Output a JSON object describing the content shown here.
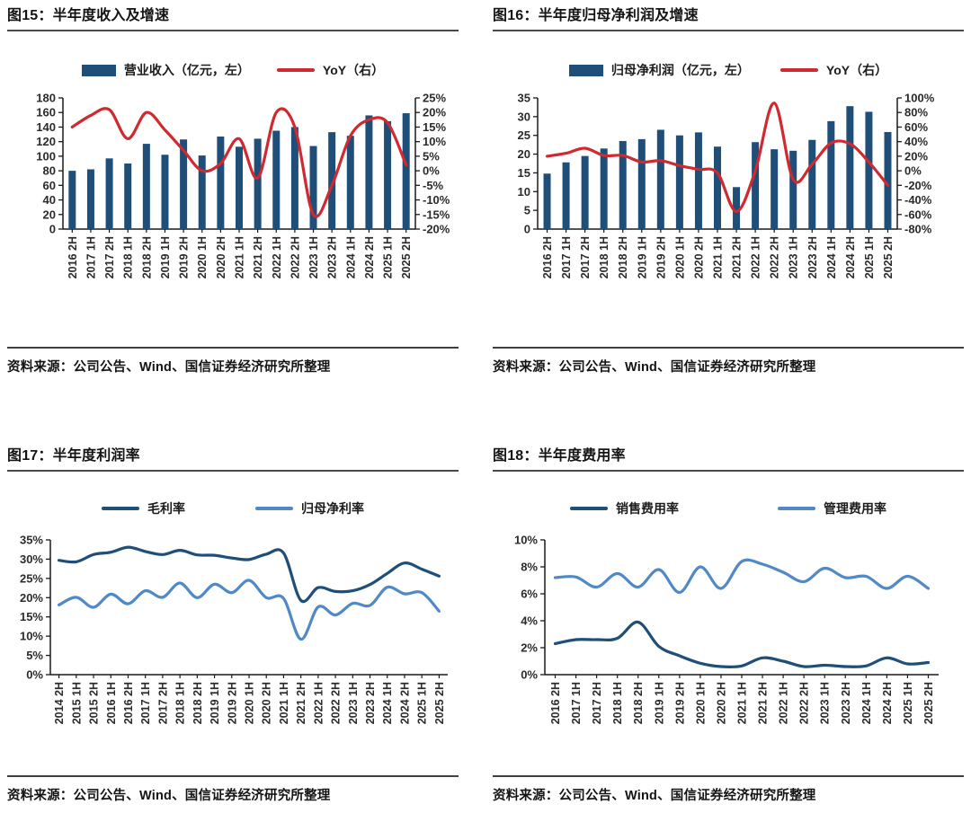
{
  "colors": {
    "navy": "#1F4E79",
    "red": "#CE2A30",
    "light_blue": "#5089C6",
    "axis": "#1a1a1a",
    "tick_text": "#2b2b2b"
  },
  "source_note": "资料来源：公司公告、Wind、国信证券经济研究所整理",
  "chart_data": [
    {
      "id": "fig15",
      "title": "图15：半年度收入及增速",
      "type": "bar",
      "categories": [
        "2016 2H",
        "2017 1H",
        "2017 2H",
        "2018 1H",
        "2018 2H",
        "2019 1H",
        "2019 2H",
        "2020 1H",
        "2020 2H",
        "2021 1H",
        "2021 2H",
        "2022 1H",
        "2022 2H",
        "2023 1H",
        "2023 2H",
        "2024 1H",
        "2024 2H",
        "2025 1H",
        "2025 2H"
      ],
      "series": [
        {
          "name": "营业收入（亿元，左）",
          "type": "bar",
          "axis": "left",
          "color_key": "navy",
          "values": [
            80,
            82,
            97,
            90,
            117,
            102,
            123,
            101,
            127,
            113,
            124,
            135,
            140,
            114,
            133,
            128,
            156,
            148,
            159
          ]
        },
        {
          "name": "YoY（右）",
          "type": "line",
          "axis": "right",
          "color_key": "red",
          "values": [
            15,
            19,
            21,
            11,
            20,
            14,
            7,
            0,
            2.5,
            11,
            -2.5,
            20,
            15,
            -15,
            -5,
            12,
            17.5,
            16.5,
            2
          ]
        }
      ],
      "left_axis": {
        "min": 0,
        "max": 180,
        "step": 20,
        "suffix": ""
      },
      "right_axis": {
        "min": -20,
        "max": 25,
        "step": 5,
        "suffix": "%"
      },
      "grid": false,
      "legend_position": "top-center",
      "source": "资料来源：公司公告、Wind、国信证券经济研究所整理"
    },
    {
      "id": "fig16",
      "title": "图16：半年度归母净利润及增速",
      "type": "bar",
      "categories": [
        "2016 2H",
        "2017 1H",
        "2017 2H",
        "2018 1H",
        "2018 2H",
        "2019 1H",
        "2019 2H",
        "2020 1H",
        "2020 2H",
        "2021 1H",
        "2021 2H",
        "2022 1H",
        "2022 2H",
        "2023 1H",
        "2023 2H",
        "2024 1H",
        "2024 2H",
        "2025 1H",
        "2025 2H"
      ],
      "series": [
        {
          "name": "归母净利润（亿元，左）",
          "type": "bar",
          "axis": "left",
          "color_key": "navy",
          "values": [
            14.8,
            17.8,
            19.5,
            21.5,
            23.5,
            24.0,
            26.5,
            25.0,
            25.8,
            22.0,
            11.2,
            23.2,
            21.3,
            20.9,
            23.8,
            28.8,
            32.8,
            31.3,
            25.9
          ]
        },
        {
          "name": "YoY（右）",
          "type": "line",
          "axis": "right",
          "color_key": "red",
          "values": [
            20,
            24,
            31,
            21,
            21,
            12,
            14,
            7,
            2,
            -3,
            -56,
            0,
            93,
            -12,
            9,
            38,
            37,
            12,
            -20
          ]
        }
      ],
      "left_axis": {
        "min": 0,
        "max": 35,
        "step": 5,
        "suffix": ""
      },
      "right_axis": {
        "min": -80,
        "max": 100,
        "step": 20,
        "suffix": "%"
      },
      "grid": false,
      "legend_position": "top-center",
      "source": "资料来源：公司公告、Wind、国信证券经济研究所整理"
    },
    {
      "id": "fig17",
      "title": "图17：半年度利润率",
      "type": "line",
      "categories": [
        "2014 2H",
        "2015 1H",
        "2015 2H",
        "2016 1H",
        "2016 2H",
        "2017 1H",
        "2017 2H",
        "2018 1H",
        "2018 2H",
        "2019 1H",
        "2019 2H",
        "2020 1H",
        "2020 2H",
        "2021 1H",
        "2021 2H",
        "2022 1H",
        "2022 2H",
        "2023 1H",
        "2023 2H",
        "2024 1H",
        "2024 2H",
        "2025 1H",
        "2025 2H"
      ],
      "series": [
        {
          "name": "毛利率",
          "type": "line",
          "axis": "left",
          "color_key": "navy",
          "values": [
            29.7,
            29.3,
            31.2,
            31.8,
            33.1,
            32.0,
            31.2,
            32.3,
            31.1,
            31.0,
            30.3,
            29.9,
            31.3,
            31.6,
            19.3,
            22.6,
            21.6,
            21.8,
            23.4,
            26.3,
            29.0,
            27.4,
            25.6
          ]
        },
        {
          "name": "归母净利率",
          "type": "line",
          "axis": "left",
          "color_key": "light_blue",
          "values": [
            18.1,
            20.1,
            17.5,
            20.9,
            18.4,
            21.8,
            20.1,
            23.8,
            20.0,
            23.5,
            21.3,
            24.5,
            20.0,
            19.8,
            9.2,
            17.6,
            15.5,
            18.5,
            18.0,
            22.7,
            21.0,
            21.3,
            16.5
          ]
        }
      ],
      "left_axis": {
        "min": 0,
        "max": 35,
        "step": 5,
        "suffix": "%"
      },
      "grid": false,
      "legend_position": "top-center",
      "source": "资料来源：公司公告、Wind、国信证券经济研究所整理"
    },
    {
      "id": "fig18",
      "title": "图18：半年度费用率",
      "type": "line",
      "categories": [
        "2016 2H",
        "2017 1H",
        "2017 2H",
        "2018 1H",
        "2018 2H",
        "2019 1H",
        "2019 2H",
        "2020 1H",
        "2020 2H",
        "2021 1H",
        "2021 2H",
        "2022 1H",
        "2022 2H",
        "2023 1H",
        "2023 2H",
        "2024 1H",
        "2024 2H",
        "2025 1H",
        "2025 2H"
      ],
      "series": [
        {
          "name": "销售费用率",
          "type": "line",
          "axis": "left",
          "color_key": "navy",
          "values": [
            2.3,
            2.6,
            2.6,
            2.7,
            3.9,
            2.1,
            1.4,
            0.85,
            0.6,
            0.65,
            1.25,
            1.0,
            0.6,
            0.7,
            0.6,
            0.65,
            1.25,
            0.8,
            0.9
          ]
        },
        {
          "name": "管理费用率",
          "type": "line",
          "axis": "left",
          "color_key": "light_blue",
          "values": [
            7.2,
            7.25,
            6.5,
            7.5,
            6.5,
            7.8,
            6.1,
            8.0,
            6.4,
            8.4,
            8.2,
            7.6,
            6.9,
            7.9,
            7.2,
            7.3,
            6.4,
            7.3,
            6.4
          ]
        }
      ],
      "left_axis": {
        "min": 0,
        "max": 10,
        "step": 2,
        "suffix": "%"
      },
      "grid": false,
      "legend_position": "top-center",
      "source": "资料来源：公司公告、Wind、国信证券经济研究所整理"
    }
  ]
}
